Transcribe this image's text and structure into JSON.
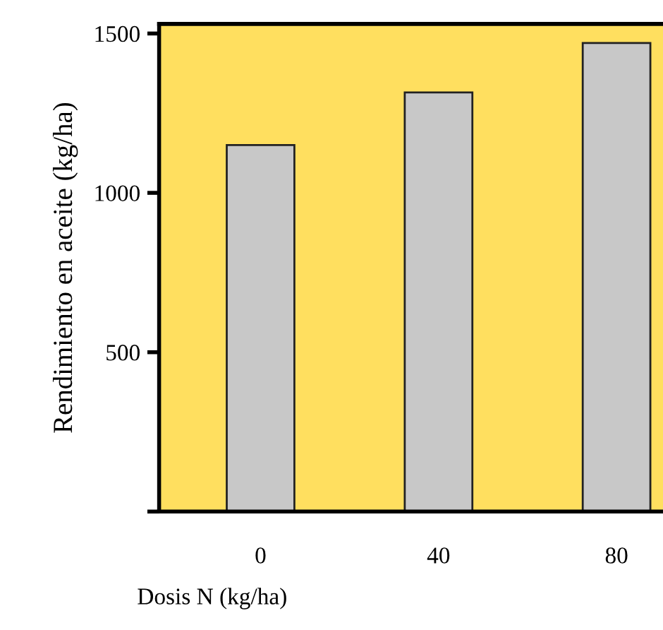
{
  "chart_data": {
    "type": "bar",
    "xlabel": "Dosis N (kg/ha)",
    "ylabel": "Rendimiento en aceite (kg/ha)",
    "categories": [
      "0",
      "40",
      "80"
    ],
    "values": [
      1150,
      1315,
      1470
    ],
    "color": "#c8c8c8",
    "ylim": [
      0,
      1530
    ],
    "yticks": [
      {
        "value": 0,
        "label": null
      },
      500,
      1000,
      1500
    ],
    "grid": false
  }
}
